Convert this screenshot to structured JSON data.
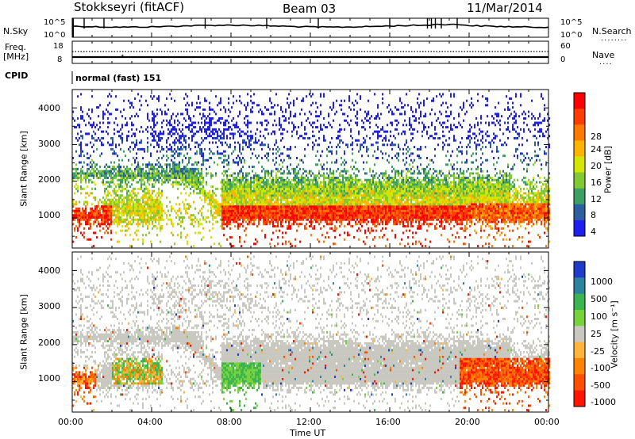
{
  "header": {
    "station": "Stokkseyri (fitACF)",
    "beam": "Beam 03",
    "date": "11/Mar/2014"
  },
  "strips": {
    "nsky_label": "N.Sky",
    "nsky_ticks": [
      "10^5",
      "10^0"
    ],
    "nsearch_label": "N.Search",
    "nsearch_ticks": [
      "10^5",
      "10^0"
    ],
    "freq_label_1": "Freq.",
    "freq_label_2": "[MHz]",
    "freq_ticks": [
      "18",
      "8"
    ],
    "nave_label": "Nave",
    "nave_ticks": [
      "60",
      "0"
    ],
    "cpid_label": "CPID",
    "cpid_value": "normal (fast) 151"
  },
  "panels": {
    "ylabel": "Slant Range [km]",
    "yticks": [
      "4000",
      "3000",
      "2000",
      "1000"
    ],
    "xticks": [
      "00:00",
      "04:00",
      "08:00",
      "12:00",
      "16:00",
      "20:00",
      "00:00"
    ],
    "xlabel": "Time UT"
  },
  "power_scale": {
    "label": "Power [dB]",
    "ticks": [
      "28",
      "24",
      "20",
      "16",
      "12",
      "8",
      "4"
    ],
    "colors": [
      "#ff0000",
      "#ff3c00",
      "#ff7800",
      "#ffb400",
      "#d2e600",
      "#82c832",
      "#3ca064",
      "#2d5fa0",
      "#1e1ef0"
    ]
  },
  "velocity_scale": {
    "label": "Velocity [m s⁻¹]",
    "ticks": [
      "1000",
      "500",
      "100",
      "25",
      "-25",
      "-100",
      "-500",
      "-1000"
    ],
    "colors": [
      "#1e3cc8",
      "#2d82a0",
      "#3cb450",
      "#78d23c",
      "#c8c8c0",
      "#ffb43c",
      "#ff8200",
      "#ff5000",
      "#ff1400"
    ]
  },
  "chart_data": {
    "type": "heatmap",
    "x_range_hours": [
      0,
      24
    ],
    "y_range_km": [
      180,
      4500
    ],
    "panels": [
      {
        "name": "Power",
        "unit": "dB",
        "range": [
          0,
          30
        ]
      },
      {
        "name": "Velocity",
        "unit": "m s⁻¹",
        "range": [
          -1000,
          1000
        ]
      }
    ]
  }
}
